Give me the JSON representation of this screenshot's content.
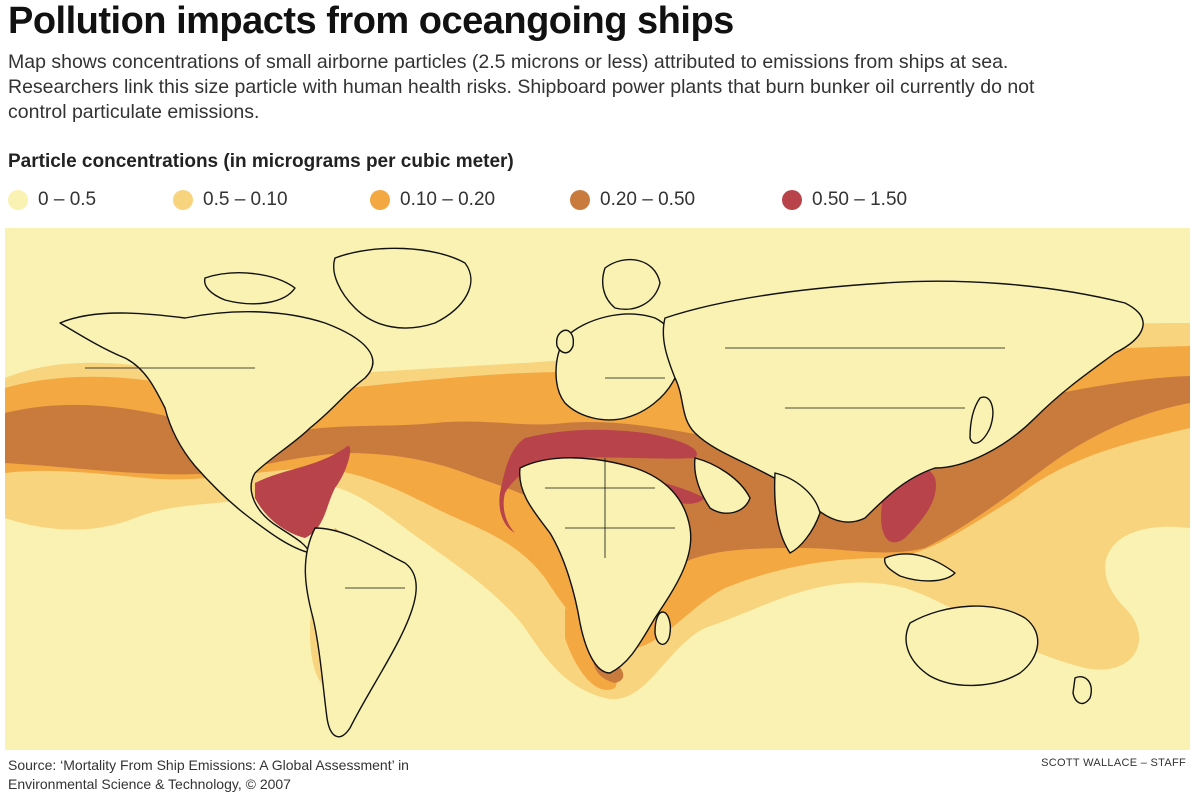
{
  "header": {
    "title": "Pollution impacts from oceangoing ships",
    "subtitle": "Map shows concentrations of small airborne particles (2.5 microns or less) attributed to emissions from ships at sea. Researchers link this size particle with human health risks. Shipboard power plants that burn bunker oil currently do not control particulate emissions."
  },
  "legend": {
    "title": "Particle concentrations (in micrograms per cubic meter)",
    "items": [
      {
        "label": "0 – 0.5",
        "color": "#f9f2b2"
      },
      {
        "label": "0.5 – 0.10",
        "color": "#f8d47e"
      },
      {
        "label": "0.10 – 0.20",
        "color": "#f3a842"
      },
      {
        "label": "0.20 – 0.50",
        "color": "#c97b3e"
      },
      {
        "label": "0.50 – 1.50",
        "color": "#b8434a"
      }
    ]
  },
  "footer": {
    "source_line1": "Source: ‘Mortality From Ship Emissions: A Global Assessment’ in",
    "source_line2": "Environmental Science & Technology, © 2007",
    "credit": "SCOTT WALLACE – STAFF"
  }
}
